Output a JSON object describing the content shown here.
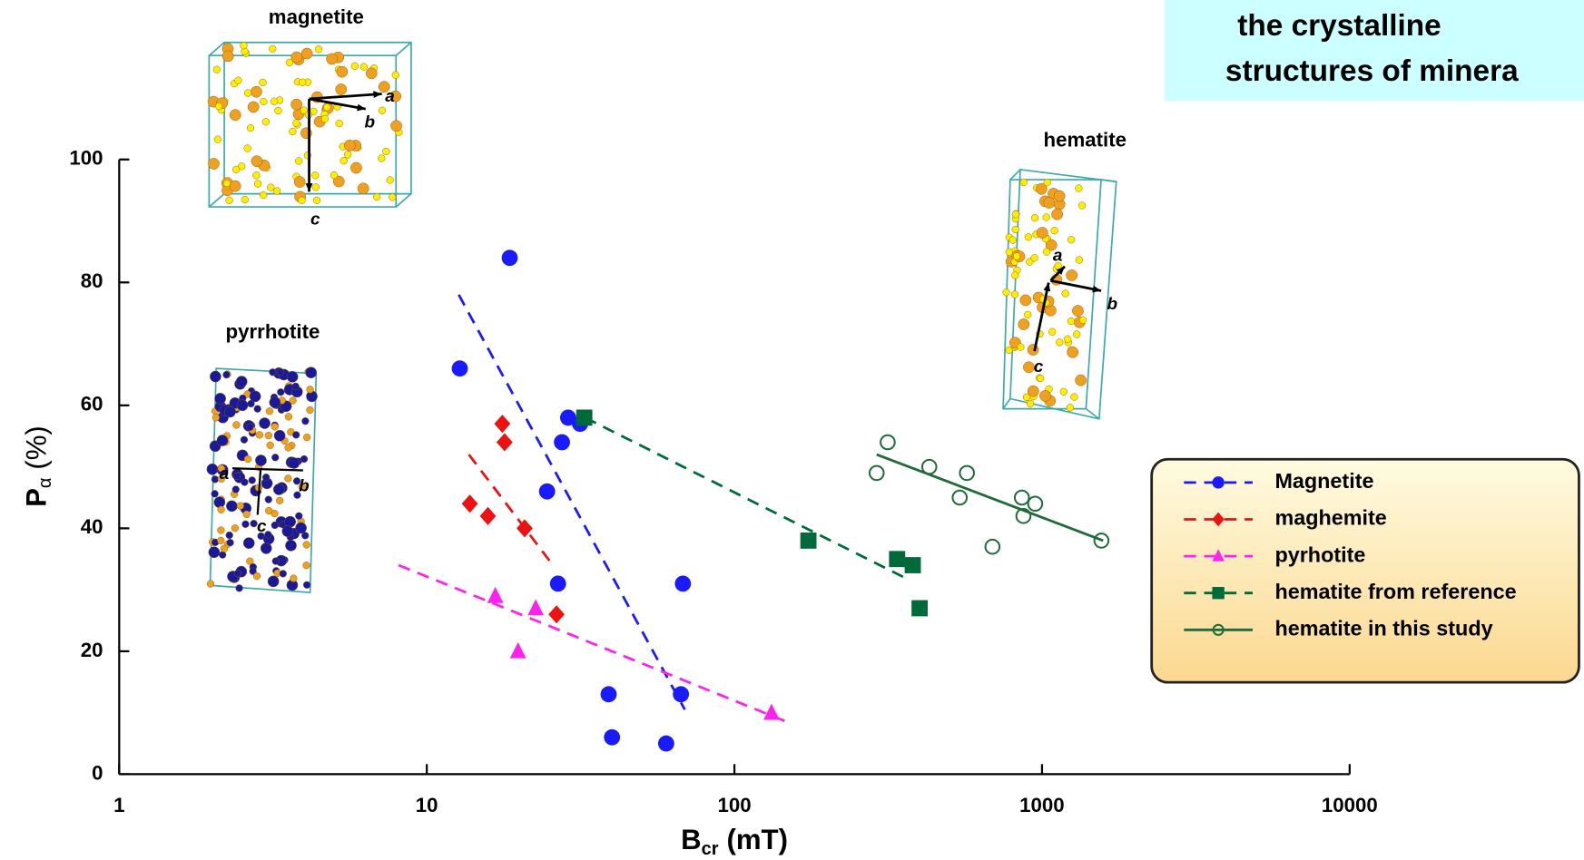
{
  "chart_data": {
    "type": "scatter",
    "xlabel": {
      "main": "B",
      "sub": "cr",
      "unit": "(mT)"
    },
    "ylabel": {
      "main": "P",
      "sub": "α",
      "unit": "(%)"
    },
    "xscale": "log",
    "xlim": [
      1,
      10000
    ],
    "xticks": [
      1,
      10,
      100,
      1000,
      10000
    ],
    "ylim": [
      0,
      100
    ],
    "yticks": [
      0,
      20,
      40,
      60,
      80,
      100
    ],
    "legend": "right",
    "callout": [
      "the crystalline",
      "structures of minera"
    ],
    "structures": [
      {
        "name": "magnetite",
        "axes": [
          "a",
          "b",
          "c"
        ]
      },
      {
        "name": "hematite",
        "axes": [
          "a",
          "b",
          "c"
        ]
      },
      {
        "name": "pyrrhotite",
        "axes": [
          "a",
          "b",
          "c"
        ]
      }
    ],
    "series": [
      {
        "name": "Magnetite",
        "color": "#1a1aff",
        "marker": "circle",
        "line": "dashed",
        "x": [
          18.6,
          12.8,
          28.8,
          31.5,
          27.5,
          24.6,
          26.7,
          68,
          39,
          67,
          40,
          60
        ],
        "values": [
          84,
          66,
          58,
          57,
          54,
          46,
          31,
          31,
          13,
          13,
          6,
          5
        ],
        "fit": {
          "x": [
            12.7,
            69
          ],
          "values": [
            78,
            10.5
          ]
        }
      },
      {
        "name": "maghemite",
        "color": "#ee1111",
        "marker": "diamond",
        "line": "dashed",
        "x": [
          17.6,
          17.9,
          13.8,
          15.8,
          20.8,
          26.4
        ],
        "values": [
          57,
          54,
          44,
          42,
          40,
          26
        ],
        "fit": {
          "x": [
            13.7,
            25.7
          ],
          "values": [
            52,
            34
          ]
        }
      },
      {
        "name": "pyrhotite",
        "color": "#ff22ee",
        "marker": "triangle",
        "line": "dashed",
        "x": [
          16.7,
          22.6,
          19.8,
          132
        ],
        "values": [
          29,
          27,
          20,
          10
        ],
        "fit": {
          "x": [
            8.1,
            150
          ],
          "values": [
            34,
            8.4
          ]
        }
      },
      {
        "name": "hematite from reference",
        "color": "#006a3a",
        "marker": "square",
        "line": "dashed",
        "x": [
          32.5,
          174,
          338,
          380,
          400
        ],
        "values": [
          58,
          38,
          35,
          34,
          27
        ],
        "fit": {
          "x": [
            32.7,
            357
          ],
          "values": [
            58,
            32
          ]
        }
      },
      {
        "name": "hematite in this study",
        "color": "#1f6b3a",
        "marker": "open-circle",
        "line": "solid",
        "x": [
          315,
          290,
          430,
          570,
          540,
          860,
          950,
          870,
          690,
          1560
        ],
        "values": [
          54,
          49,
          50,
          49,
          45,
          45,
          44,
          42,
          37,
          38
        ],
        "fit": {
          "x": [
            290,
            1580
          ],
          "values": [
            52,
            38
          ]
        }
      }
    ]
  }
}
